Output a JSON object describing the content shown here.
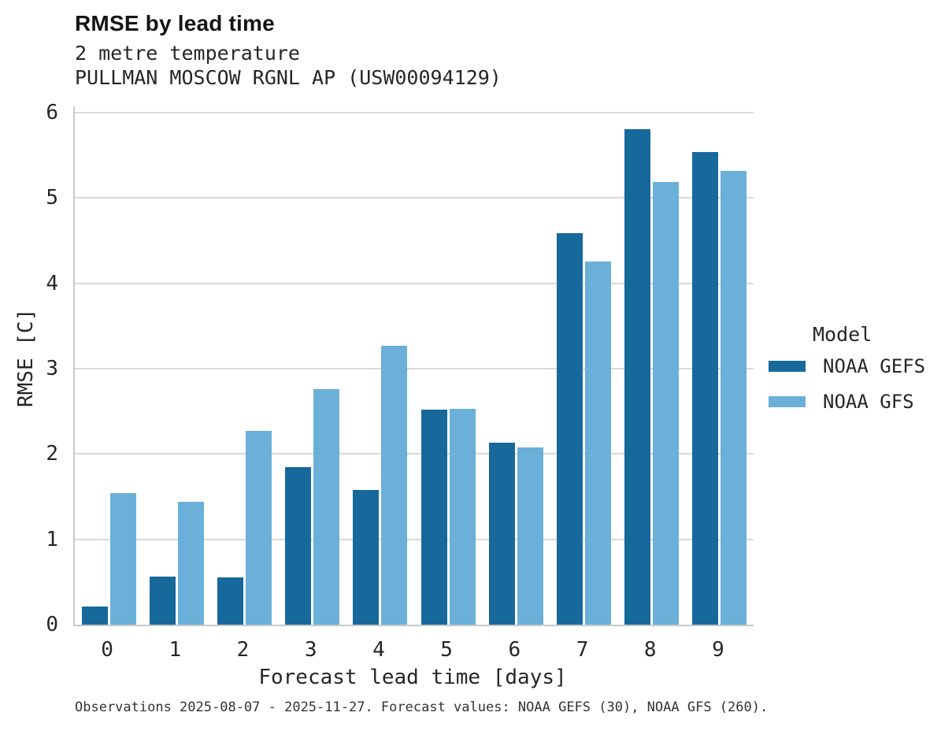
{
  "title": "RMSE by lead time",
  "subtitle_variable": "2 metre temperature",
  "subtitle_station": "PULLMAN MOSCOW RGNL AP (USW00094129)",
  "caption": "Observations 2025-08-07 - 2025-11-27. Forecast values: NOAA GEFS (30), NOAA GFS (260).",
  "legend": {
    "title": "Model"
  },
  "colors": {
    "gefs": "#17699c",
    "gfs": "#6ab0d8",
    "gridline": "#d9d9d9",
    "spine": "#c9c9c9"
  },
  "chart_data": {
    "type": "bar",
    "title": "RMSE by lead time",
    "subtitle": "2 metre temperature — PULLMAN MOSCOW RGNL AP (USW00094129)",
    "xlabel": "Forecast lead time [days]",
    "ylabel": "RMSE [C]",
    "categories": [
      "0",
      "1",
      "2",
      "3",
      "4",
      "5",
      "6",
      "7",
      "8",
      "9"
    ],
    "series": [
      {
        "name": "NOAA GEFS",
        "color": "#17699c",
        "values": [
          0.21,
          0.56,
          0.55,
          1.85,
          1.58,
          2.52,
          2.13,
          4.59,
          5.81,
          5.54
        ]
      },
      {
        "name": "NOAA GFS",
        "color": "#6ab0d8",
        "values": [
          1.54,
          1.44,
          2.27,
          2.76,
          3.27,
          2.53,
          2.08,
          4.26,
          5.19,
          5.32
        ]
      }
    ],
    "ylim": [
      0,
      6
    ],
    "yticks": [
      0,
      1,
      2,
      3,
      4,
      5,
      6
    ],
    "grid": true,
    "legend_position": "right"
  }
}
